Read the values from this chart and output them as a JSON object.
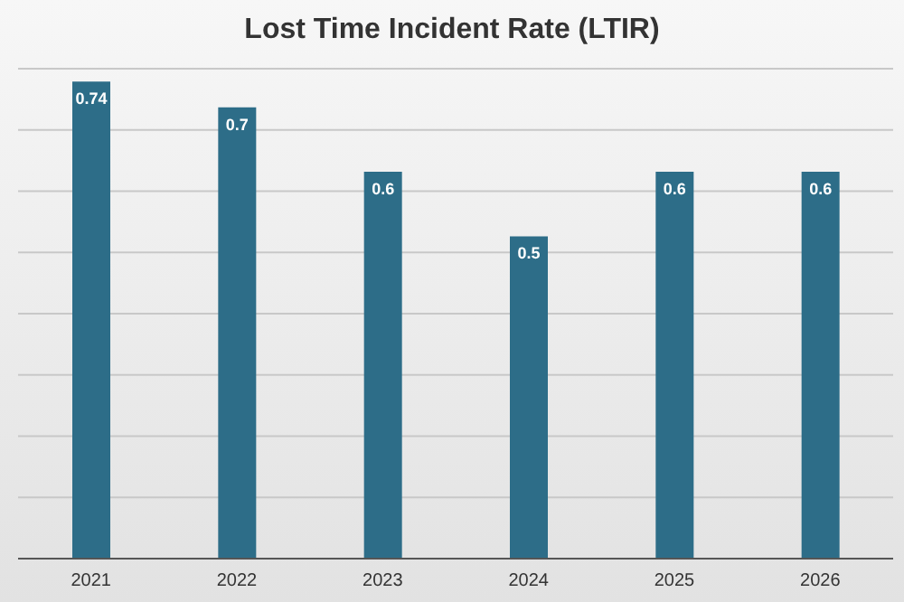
{
  "chart_data": {
    "type": "bar",
    "title": "Lost Time Incident Rate (LTIR)",
    "categories": [
      "2021",
      "2022",
      "2023",
      "2024",
      "2025",
      "2026"
    ],
    "values": [
      0.74,
      0.7,
      0.6,
      0.5,
      0.6,
      0.6
    ],
    "color": "#2d6d88",
    "grid": "y",
    "tick_labels": "x",
    "data_labels": true,
    "legend": false
  }
}
